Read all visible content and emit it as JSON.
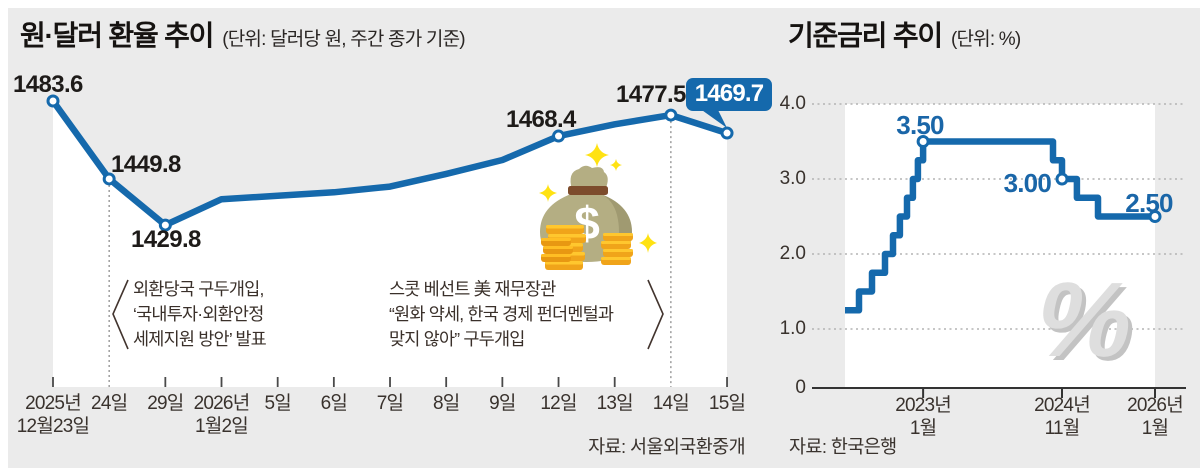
{
  "page": {
    "background": "#ebebeb",
    "accent_blue": "#1569ac",
    "grid_color": "#b3b3b3"
  },
  "left_panel": {
    "title": "원·달러 환율 추이",
    "unit_label": "(단위: 달러당 원, 주간 종가 기준)",
    "source": "자료: 서울외국환중개",
    "annotations": [
      {
        "lines": [
          "외환당국 구두개입,",
          "‘국내투자·외환안정",
          "세제지원 방안’ 발표"
        ]
      },
      {
        "lines": [
          "스콧 베선트 美 재무장관",
          "“원화 약세, 한국 경제 펀더멘털과",
          "맞지 않아” 구두개입"
        ]
      }
    ]
  },
  "right_panel": {
    "title": "기준금리 추이",
    "unit_label": "(단위: %)",
    "source": "자료: 한국은행",
    "watermark": "%"
  },
  "chart_data": [
    {
      "type": "line",
      "title": "원·달러 환율 추이",
      "unit": "달러당 원, 주간 종가 기준",
      "categories": [
        [
          "2025년",
          "12월23일"
        ],
        [
          "24일"
        ],
        [
          "29일"
        ],
        [
          "2026년",
          "1월2일"
        ],
        [
          "5일"
        ],
        [
          "6일"
        ],
        [
          "7일"
        ],
        [
          "8일"
        ],
        [
          "9일"
        ],
        [
          "12일"
        ],
        [
          "13일"
        ],
        [
          "14일"
        ],
        [
          "15일"
        ]
      ],
      "values": [
        1483.6,
        1449.8,
        1429.8,
        1441.0,
        1442.5,
        1444.0,
        1446.5,
        1452.0,
        1458.0,
        1468.4,
        1473.5,
        1477.5,
        1469.7
      ],
      "labeled_indices": [
        0,
        1,
        2,
        9,
        11
      ],
      "callout_index": 12,
      "dotted_guide_indices": [
        1,
        11
      ],
      "ylim": [
        1358,
        1492
      ],
      "legend": "none",
      "grid": "off"
    },
    {
      "type": "line",
      "subtype": "step",
      "title": "기준금리 추이",
      "unit": "%",
      "yticks": [
        {
          "label": "4.0",
          "value": 4.0
        },
        {
          "label": "3.0",
          "value": 3.0
        },
        {
          "label": "2.0",
          "value": 2.0
        },
        {
          "label": "1.0",
          "value": 1.0
        },
        {
          "label": "0",
          "value": 0
        }
      ],
      "xticks": [
        {
          "t": 0.252,
          "lines": [
            "2023년",
            "1월"
          ]
        },
        {
          "t": 0.7,
          "lines": [
            "2024년",
            "11월"
          ]
        },
        {
          "t": 1.0,
          "lines": [
            "2026년",
            "1월"
          ]
        }
      ],
      "steps": [
        {
          "t": 0.0,
          "rate": 1.25
        },
        {
          "t": 0.045,
          "rate": 1.5
        },
        {
          "t": 0.087,
          "rate": 1.75
        },
        {
          "t": 0.129,
          "rate": 2.0
        },
        {
          "t": 0.155,
          "rate": 2.25
        },
        {
          "t": 0.177,
          "rate": 2.5
        },
        {
          "t": 0.2,
          "rate": 2.75
        },
        {
          "t": 0.219,
          "rate": 3.0
        },
        {
          "t": 0.235,
          "rate": 3.25
        },
        {
          "t": 0.252,
          "rate": 3.5
        },
        {
          "t": 0.671,
          "rate": 3.25
        },
        {
          "t": 0.7,
          "rate": 3.0
        },
        {
          "t": 0.748,
          "rate": 2.75
        },
        {
          "t": 0.816,
          "rate": 2.5
        }
      ],
      "markers": [
        {
          "t": 0.252,
          "rate": 3.5
        },
        {
          "t": 0.7,
          "rate": 3.0
        },
        {
          "t": 1.0,
          "rate": 2.5
        }
      ],
      "ylim": [
        0,
        4.2
      ],
      "grid": "dotted-horizontal"
    }
  ]
}
